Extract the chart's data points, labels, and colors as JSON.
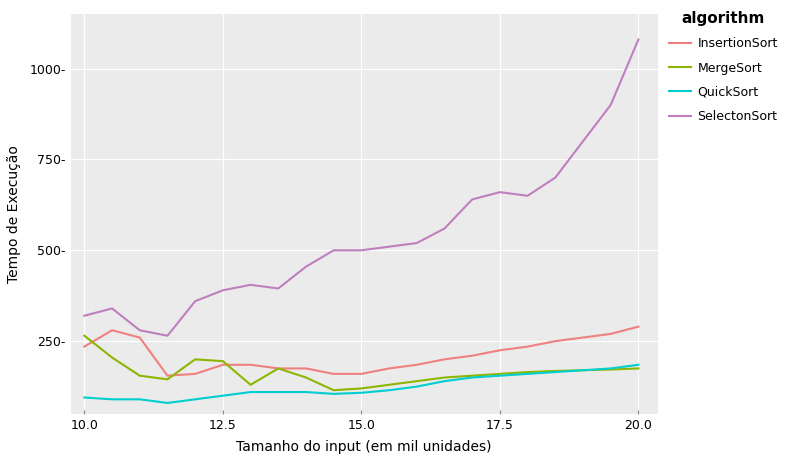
{
  "x": [
    10.0,
    10.5,
    11.0,
    11.5,
    12.0,
    12.5,
    13.0,
    13.5,
    14.0,
    14.5,
    15.0,
    15.5,
    16.0,
    16.5,
    17.0,
    17.5,
    18.0,
    18.5,
    19.0,
    19.5,
    20.0
  ],
  "InsertionSort": [
    235,
    280,
    260,
    155,
    160,
    185,
    185,
    175,
    175,
    160,
    160,
    175,
    185,
    200,
    210,
    225,
    235,
    250,
    260,
    270,
    290
  ],
  "MergeSort": [
    265,
    205,
    155,
    145,
    200,
    195,
    130,
    175,
    150,
    115,
    120,
    130,
    140,
    150,
    155,
    160,
    165,
    168,
    170,
    172,
    175
  ],
  "QuickSort": [
    95,
    90,
    90,
    80,
    90,
    100,
    110,
    110,
    110,
    105,
    108,
    115,
    125,
    140,
    150,
    155,
    160,
    165,
    170,
    175,
    185
  ],
  "SelectonSort": [
    320,
    340,
    280,
    265,
    360,
    390,
    405,
    395,
    455,
    500,
    500,
    510,
    520,
    560,
    640,
    660,
    650,
    700,
    800,
    900,
    1080
  ],
  "colors": {
    "InsertionSort": "#F08080",
    "MergeSort": "#8DB600",
    "QuickSort": "#00CED1",
    "SelectonSort": "#BF7FBF"
  },
  "xlabel": "Tamanho do input (em mil unidades)",
  "ylabel": "Tempo de Execução",
  "legend_title": "algorithm",
  "plot_background": "#EBEBEB",
  "outer_background": "#FFFFFF",
  "grid_color": "#FFFFFF",
  "ytick_labels": [
    "250-",
    "500-",
    "750-",
    "1000-"
  ],
  "ytick_values": [
    250,
    500,
    750,
    1000
  ],
  "xtick_labels": [
    "10.0",
    "12.5",
    "15.0",
    "17.5",
    "20.0"
  ],
  "xtick_values": [
    10.0,
    12.5,
    15.0,
    17.5,
    20.0
  ],
  "ylim": [
    50,
    1150
  ],
  "xlim": [
    9.75,
    20.35
  ]
}
